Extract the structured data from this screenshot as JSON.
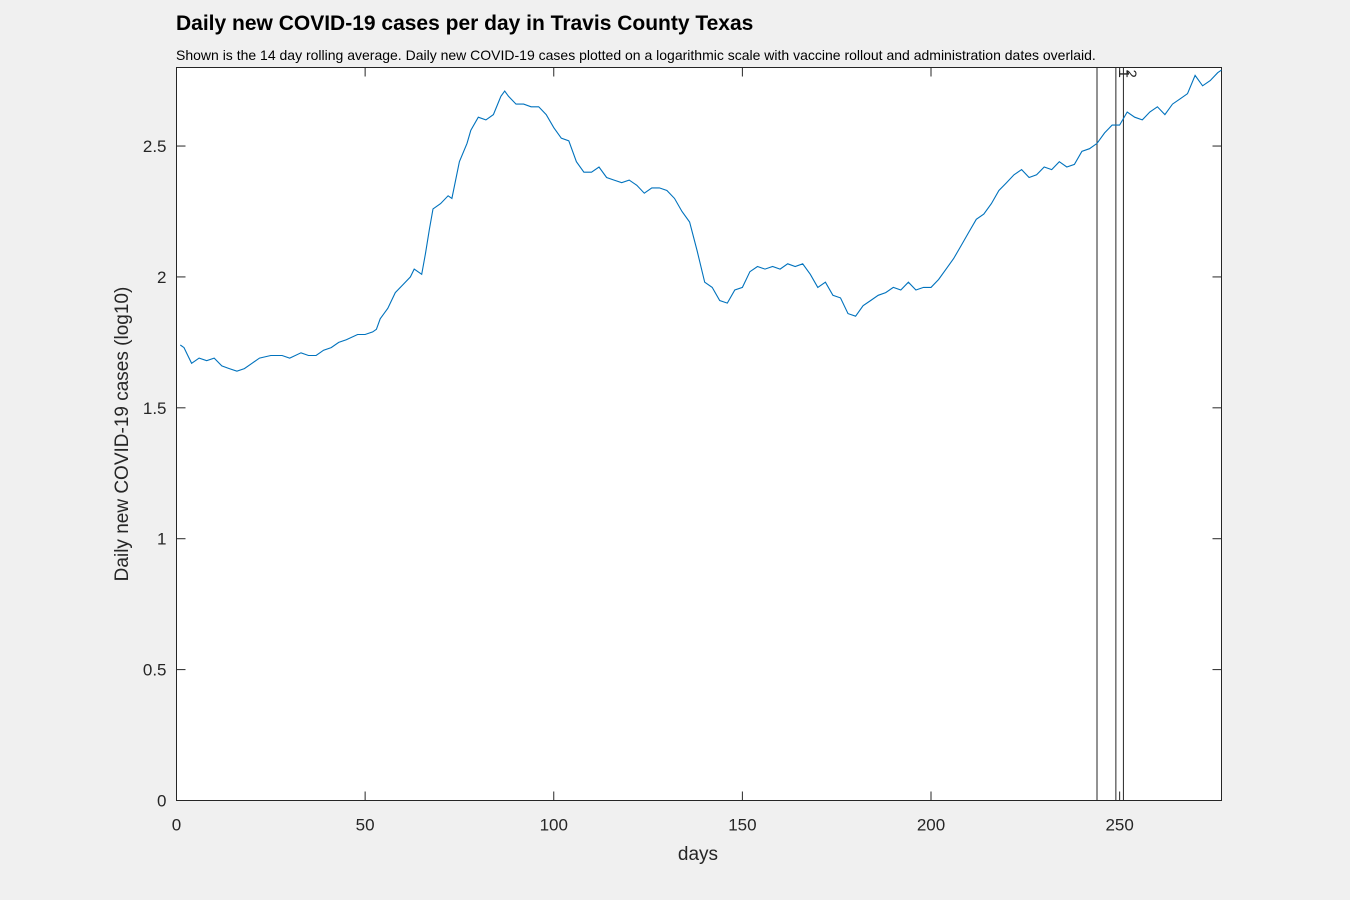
{
  "chart_data": {
    "type": "line",
    "title": "Daily new COVID-19 cases per day in Travis County Texas",
    "subtitle": "Shown is the 14 day rolling average. Daily new COVID-19 cases plotted on a logarithmic scale with vaccine rollout and administration dates overlaid.",
    "xlabel": "days",
    "ylabel": "Daily new COVID-19 cases (log10)",
    "xlim": [
      0,
      277
    ],
    "ylim": [
      0,
      2.8
    ],
    "xticks": [
      0,
      50,
      100,
      150,
      200,
      250
    ],
    "yticks": [
      0,
      0.5,
      1,
      1.5,
      2,
      2.5
    ],
    "ytick_labels": [
      "0",
      "0.5",
      "1",
      "1.5",
      "2",
      "2.5"
    ],
    "grid": false,
    "line_color": "#0072bd",
    "series": [
      {
        "name": "14 day rolling average (log10)",
        "x": [
          1,
          2,
          3,
          4,
          5,
          6,
          8,
          10,
          12,
          14,
          16,
          18,
          20,
          22,
          25,
          28,
          30,
          33,
          35,
          37,
          39,
          41,
          43,
          45,
          48,
          50,
          52,
          53,
          54,
          55,
          56,
          58,
          60,
          62,
          63,
          65,
          66,
          67,
          68,
          70,
          72,
          73,
          75,
          77,
          78,
          80,
          82,
          84,
          86,
          87,
          88,
          90,
          92,
          94,
          96,
          98,
          100,
          102,
          104,
          106,
          108,
          110,
          112,
          114,
          116,
          118,
          120,
          122,
          124,
          126,
          128,
          130,
          132,
          134,
          136,
          138,
          140,
          142,
          144,
          146,
          148,
          150,
          152,
          154,
          156,
          158,
          160,
          162,
          164,
          166,
          168,
          170,
          172,
          174,
          176,
          178,
          180,
          182,
          184,
          186,
          188,
          190,
          192,
          194,
          196,
          198,
          200,
          202,
          204,
          206,
          208,
          210,
          212,
          214,
          216,
          218,
          220,
          222,
          224,
          226,
          228,
          230,
          232,
          234,
          236,
          238,
          240,
          242,
          244,
          246,
          248,
          250,
          252,
          254,
          256,
          258,
          260,
          262,
          264,
          266,
          268,
          270,
          272,
          274,
          276,
          277
        ],
        "values": [
          1.74,
          1.73,
          1.7,
          1.67,
          1.68,
          1.69,
          1.68,
          1.69,
          1.66,
          1.65,
          1.64,
          1.65,
          1.67,
          1.69,
          1.7,
          1.7,
          1.69,
          1.71,
          1.7,
          1.7,
          1.72,
          1.73,
          1.75,
          1.76,
          1.78,
          1.78,
          1.79,
          1.8,
          1.84,
          1.86,
          1.88,
          1.94,
          1.97,
          2.0,
          2.03,
          2.01,
          2.09,
          2.18,
          2.26,
          2.28,
          2.31,
          2.3,
          2.44,
          2.51,
          2.56,
          2.61,
          2.6,
          2.62,
          2.69,
          2.71,
          2.69,
          2.66,
          2.66,
          2.65,
          2.65,
          2.62,
          2.57,
          2.53,
          2.52,
          2.44,
          2.4,
          2.4,
          2.42,
          2.38,
          2.37,
          2.36,
          2.37,
          2.35,
          2.32,
          2.34,
          2.34,
          2.33,
          2.3,
          2.25,
          2.21,
          2.1,
          1.98,
          1.96,
          1.91,
          1.9,
          1.95,
          1.96,
          2.02,
          2.04,
          2.03,
          2.04,
          2.03,
          2.05,
          2.04,
          2.05,
          2.01,
          1.96,
          1.98,
          1.93,
          1.92,
          1.86,
          1.85,
          1.89,
          1.91,
          1.93,
          1.94,
          1.96,
          1.95,
          1.98,
          1.95,
          1.96,
          1.96,
          1.99,
          2.03,
          2.07,
          2.12,
          2.17,
          2.22,
          2.24,
          2.28,
          2.33,
          2.36,
          2.39,
          2.41,
          2.38,
          2.39,
          2.42,
          2.41,
          2.44,
          2.42,
          2.43,
          2.48,
          2.49,
          2.51,
          2.55,
          2.58,
          2.58,
          2.63,
          2.61,
          2.6,
          2.63,
          2.65,
          2.62,
          2.66,
          2.68,
          2.7,
          2.77,
          2.73,
          2.75,
          2.78,
          2.79
        ]
      }
    ],
    "vertical_markers": [
      {
        "x": 244,
        "label": ""
      },
      {
        "x": 249,
        "label": "1"
      },
      {
        "x": 251,
        "label": "2"
      }
    ]
  }
}
